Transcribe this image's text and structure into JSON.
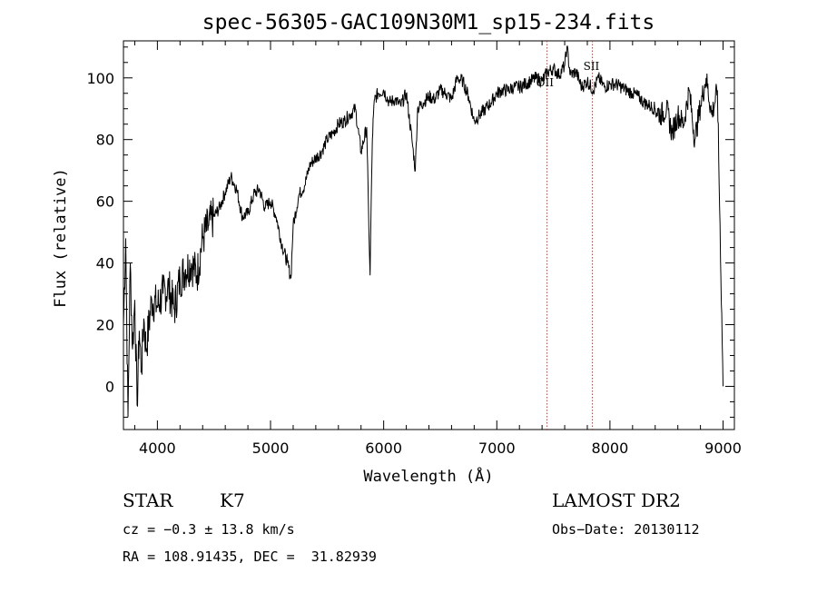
{
  "chart_data": {
    "type": "line",
    "title": "spec-56305-GAC109N30M1_sp15-234.fits",
    "xlabel": "Wavelength (Å)",
    "ylabel": "Flux (relative)",
    "xlim": [
      3700,
      9100
    ],
    "ylim": [
      -14,
      112
    ],
    "xticks": [
      4000,
      5000,
      6000,
      7000,
      8000,
      9000
    ],
    "yticks": [
      0,
      20,
      40,
      60,
      80,
      100
    ],
    "grid": false,
    "line_color": "#000000",
    "marker_color": "#c0392b",
    "series": [
      {
        "x": [
          3700,
          3720,
          3740,
          3760,
          3780,
          3800,
          3820,
          3840,
          3860,
          3880,
          3900,
          3950,
          4000,
          4050,
          4100,
          4150,
          4200,
          4250,
          4300,
          4350,
          4400,
          4450,
          4500,
          4550,
          4600,
          4650,
          4700,
          4750,
          4800,
          4850,
          4900,
          4950,
          5000,
          5050,
          5100,
          5150,
          5180,
          5200,
          5250,
          5300,
          5350,
          5400,
          5450,
          5500,
          5550,
          5600,
          5650,
          5700,
          5750,
          5800,
          5850,
          5870,
          5880,
          5890,
          5900,
          5910,
          5920,
          5950,
          6000,
          6050,
          6100,
          6150,
          6200,
          6250,
          6280,
          6300,
          6350,
          6400,
          6450,
          6500,
          6550,
          6600,
          6650,
          6700,
          6750,
          6800,
          6850,
          6900,
          6950,
          7000,
          7050,
          7100,
          7150,
          7200,
          7250,
          7300,
          7350,
          7400,
          7450,
          7500,
          7550,
          7600,
          7620,
          7650,
          7700,
          7750,
          7800,
          7850,
          7900,
          7950,
          8000,
          8050,
          8100,
          8150,
          8200,
          8250,
          8300,
          8350,
          8400,
          8450,
          8500,
          8550,
          8600,
          8650,
          8700,
          8750,
          8800,
          8850,
          8900,
          8950,
          9000
        ],
        "y": [
          20,
          48,
          -10,
          40,
          12,
          28,
          -6,
          18,
          5,
          22,
          12,
          28,
          26,
          30,
          32,
          25,
          35,
          38,
          40,
          36,
          48,
          52,
          55,
          58,
          63,
          68,
          64,
          55,
          56,
          62,
          64,
          58,
          60,
          55,
          46,
          40,
          35,
          52,
          62,
          65,
          72,
          74,
          76,
          80,
          82,
          85,
          86,
          88,
          90,
          76,
          84,
          50,
          36,
          60,
          80,
          88,
          93,
          95,
          96,
          92,
          93,
          91,
          95,
          80,
          70,
          90,
          92,
          94,
          93,
          96,
          95,
          93,
          100,
          99,
          94,
          86,
          88,
          90,
          92,
          95,
          96,
          96,
          97,
          97,
          98,
          99,
          100,
          99,
          102,
          103,
          101,
          104,
          110,
          101,
          102,
          97,
          99,
          96,
          100,
          97,
          98,
          98,
          97,
          96,
          95,
          94,
          92,
          91,
          90,
          88,
          90,
          82,
          88,
          85,
          96,
          80,
          91,
          100,
          88,
          96,
          0
        ]
      }
    ],
    "lines": [
      {
        "label": "OII",
        "x": 7444
      },
      {
        "label": "SII",
        "x": 7845
      }
    ]
  },
  "info": {
    "class": "STAR",
    "subclass": "K7",
    "survey": "LAMOST DR2",
    "cz": "cz = −0.3 ± 13.8 km/s",
    "obs_date": "Obs−Date: 20130112",
    "coords": "RA = 108.91435, DEC =  31.82939"
  }
}
